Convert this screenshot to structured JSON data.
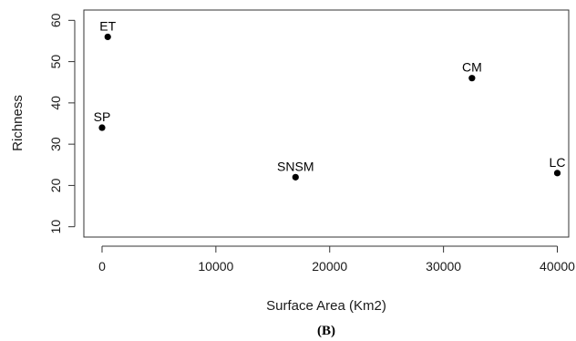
{
  "chart_data": {
    "type": "scatter",
    "title": "",
    "xlabel": "Surface Area (Km2)",
    "ylabel": "Richness",
    "xlim": [
      -1600,
      41000
    ],
    "ylim": [
      7.5,
      62.5
    ],
    "x_ticks": [
      0,
      10000,
      20000,
      30000,
      40000
    ],
    "y_ticks": [
      10,
      20,
      30,
      40,
      50,
      60
    ],
    "grid": false,
    "points": [
      {
        "label": "ET",
        "x": 500,
        "y": 56
      },
      {
        "label": "SP",
        "x": 0,
        "y": 34
      },
      {
        "label": "SNSM",
        "x": 17000,
        "y": 22
      },
      {
        "label": "CM",
        "x": 32500,
        "y": 46
      },
      {
        "label": "LC",
        "x": 40000,
        "y": 23
      }
    ]
  },
  "caption": "(B)"
}
